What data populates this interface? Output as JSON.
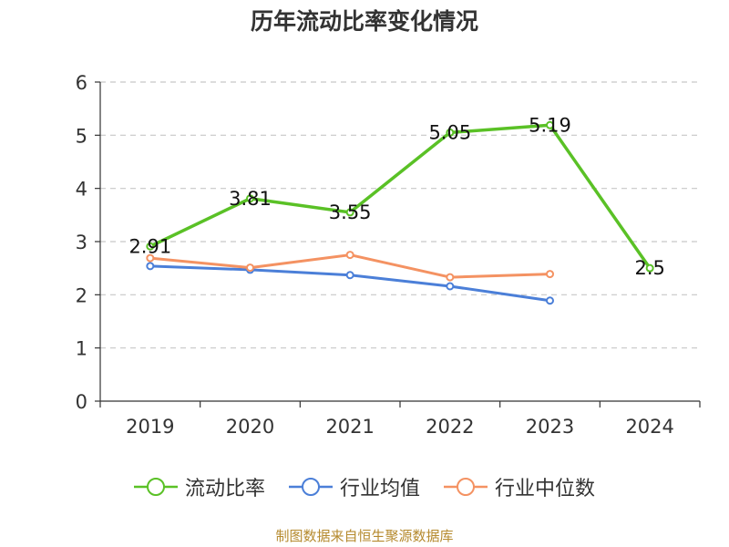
{
  "chart_data": {
    "type": "line",
    "title": "历年流动比率变化情况",
    "categories": [
      "2019",
      "2020",
      "2021",
      "2022",
      "2023",
      "2024"
    ],
    "ylim": [
      0,
      6
    ],
    "yticks": [
      "0",
      "1",
      "2",
      "3",
      "4",
      "5",
      "6"
    ],
    "grid": true,
    "legend_position": "bottom",
    "series": [
      {
        "name": "流动比率",
        "color": "#5ac126",
        "values": [
          2.91,
          3.81,
          3.55,
          5.05,
          5.19,
          2.5
        ],
        "labels": [
          "2.91",
          "3.81",
          "3.55",
          "5.05",
          "5.19",
          "2.5"
        ]
      },
      {
        "name": "行业均值",
        "color": "#4b7fd8",
        "values": [
          2.54,
          2.47,
          2.37,
          2.16,
          1.89,
          null
        ]
      },
      {
        "name": "行业中位数",
        "color": "#f49262",
        "values": [
          2.69,
          2.51,
          2.75,
          2.33,
          2.39,
          null
        ]
      }
    ]
  },
  "source": "制图数据来自恒生聚源数据库"
}
